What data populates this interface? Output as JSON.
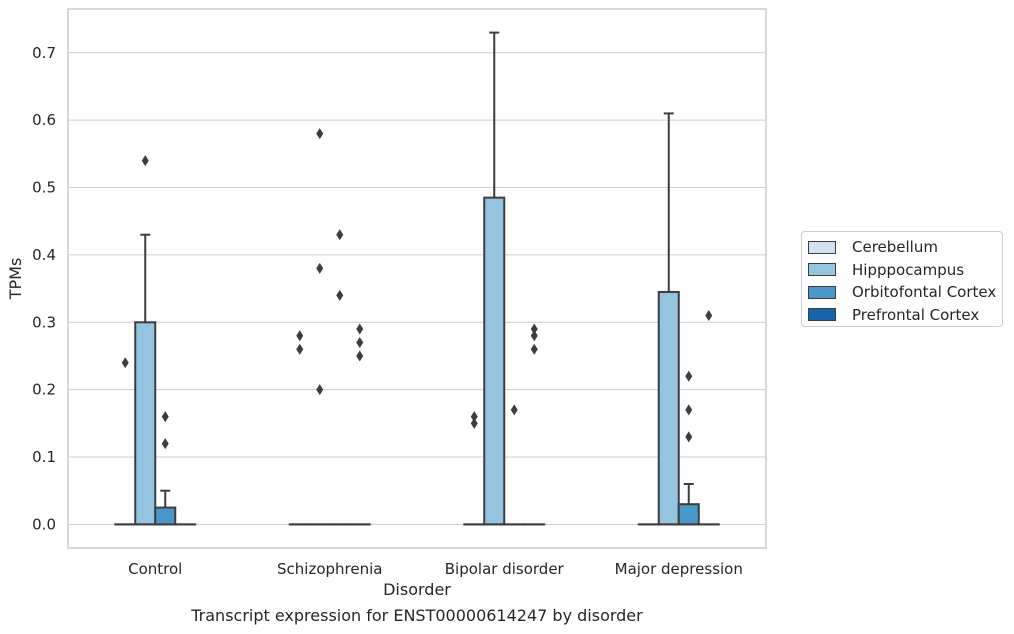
{
  "caption": "Transcript expression for ENST00000614247 by disorder",
  "chart_data": {
    "type": "box",
    "xlabel": "Disorder",
    "ylabel": "TPMs",
    "ylim": [
      -0.035,
      0.765
    ],
    "yticks": [
      0.0,
      0.1,
      0.2,
      0.3,
      0.4,
      0.5,
      0.6,
      0.7
    ],
    "ytick_labels": [
      "0.0",
      "0.1",
      "0.2",
      "0.3",
      "0.4",
      "0.5",
      "0.6",
      "0.7"
    ],
    "grid": "horizontal",
    "legend_position": "right",
    "categories": [
      "Control",
      "Schizophrenia",
      "Bipolar disorder",
      "Major depression"
    ],
    "series": [
      {
        "name": "Cerebellum",
        "color": "#d0e1f2",
        "boxes": [
          {
            "q1": 0,
            "median": 0,
            "q3": 0,
            "whisker_low": 0,
            "whisker_high": 0,
            "outliers": [
              0.24
            ]
          },
          {
            "q1": 0,
            "median": 0,
            "q3": 0,
            "whisker_low": 0,
            "whisker_high": 0,
            "outliers": [
              0.26,
              0.28
            ]
          },
          {
            "q1": 0,
            "median": 0,
            "q3": 0,
            "whisker_low": 0,
            "whisker_high": 0,
            "outliers": [
              0.15,
              0.16
            ]
          },
          {
            "q1": 0,
            "median": 0,
            "q3": 0,
            "whisker_low": 0,
            "whisker_high": 0,
            "outliers": []
          }
        ]
      },
      {
        "name": "Hipppocampus",
        "color": "#94c4df",
        "boxes": [
          {
            "q1": 0,
            "median": 0,
            "q3": 0.3,
            "whisker_low": 0,
            "whisker_high": 0.43,
            "outliers": [
              0.54
            ]
          },
          {
            "q1": 0,
            "median": 0,
            "q3": 0,
            "whisker_low": 0,
            "whisker_high": 0,
            "outliers": [
              0.2,
              0.38,
              0.58
            ]
          },
          {
            "q1": 0,
            "median": 0,
            "q3": 0.485,
            "whisker_low": 0,
            "whisker_high": 0.73,
            "outliers": []
          },
          {
            "q1": 0,
            "median": 0,
            "q3": 0.345,
            "whisker_low": 0,
            "whisker_high": 0.61,
            "outliers": []
          }
        ]
      },
      {
        "name": "Orbitofontal Cortex",
        "color": "#4a98c9",
        "boxes": [
          {
            "q1": 0,
            "median": 0,
            "q3": 0.025,
            "whisker_low": 0,
            "whisker_high": 0.05,
            "outliers": [
              0.12,
              0.16
            ]
          },
          {
            "q1": 0,
            "median": 0,
            "q3": 0,
            "whisker_low": 0,
            "whisker_high": 0,
            "outliers": [
              0.34,
              0.43
            ]
          },
          {
            "q1": 0,
            "median": 0,
            "q3": 0,
            "whisker_low": 0,
            "whisker_high": 0,
            "outliers": [
              0.17
            ]
          },
          {
            "q1": 0,
            "median": 0,
            "q3": 0.03,
            "whisker_low": 0,
            "whisker_high": 0.06,
            "outliers": [
              0.13,
              0.17,
              0.22
            ]
          }
        ]
      },
      {
        "name": "Prefrontal Cortex",
        "color": "#1764ab",
        "boxes": [
          {
            "q1": 0,
            "median": 0,
            "q3": 0,
            "whisker_low": 0,
            "whisker_high": 0,
            "outliers": []
          },
          {
            "q1": 0,
            "median": 0,
            "q3": 0,
            "whisker_low": 0,
            "whisker_high": 0,
            "outliers": [
              0.25,
              0.27,
              0.29
            ]
          },
          {
            "q1": 0,
            "median": 0,
            "q3": 0,
            "whisker_low": 0,
            "whisker_high": 0,
            "outliers": [
              0.26,
              0.28,
              0.29
            ]
          },
          {
            "q1": 0,
            "median": 0,
            "q3": 0,
            "whisker_low": 0,
            "whisker_high": 0,
            "outliers": [
              0.31
            ]
          }
        ]
      }
    ]
  }
}
